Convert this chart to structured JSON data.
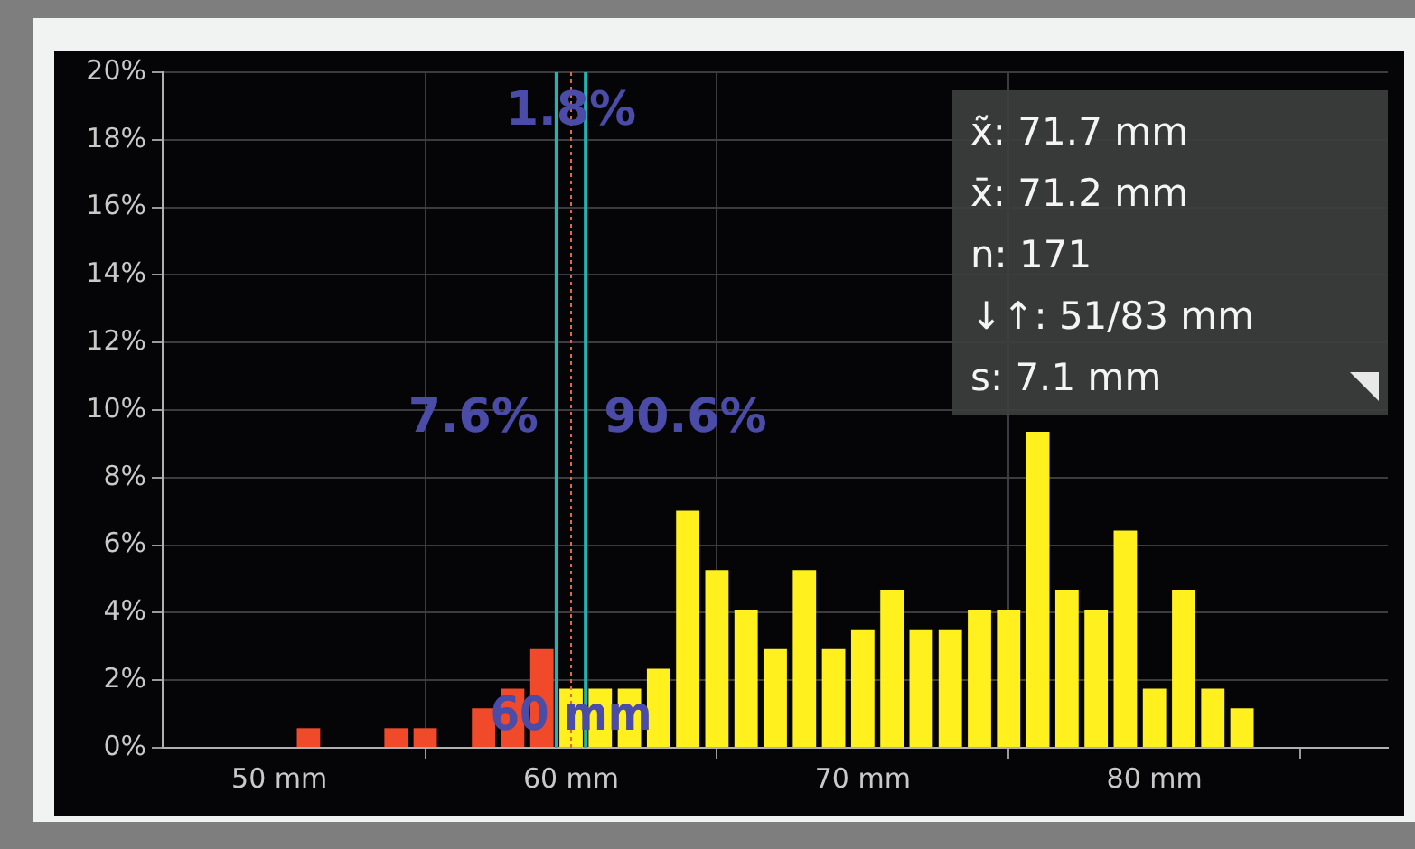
{
  "chart_data": {
    "type": "histogram",
    "bins": [
      50.5,
      51.5,
      52.5,
      53.5,
      54.5,
      55.5,
      56.5,
      57.5,
      58.5,
      59.5,
      60.5,
      61.5,
      62.5,
      63.5,
      64.5,
      65.5,
      66.5,
      67.5,
      68.5,
      69.5,
      70.5,
      71.5,
      72.5,
      73.5,
      74.5,
      75.5,
      76.5,
      77.5,
      78.5,
      79.5,
      80.5,
      81.5,
      82.5,
      83.5
    ],
    "values": [
      0.58,
      0,
      0,
      0.58,
      0.58,
      0,
      1.17,
      1.75,
      2.92,
      1.75,
      1.75,
      1.75,
      2.34,
      7.02,
      5.26,
      4.09,
      2.92,
      5.26,
      2.92,
      3.51,
      4.68,
      3.51,
      3.51,
      4.09,
      4.09,
      9.36,
      4.68,
      4.09,
      6.43,
      1.75,
      4.68,
      1.75,
      1.17
    ],
    "colors": [
      "#f04a2a",
      "#f04a2a",
      "#f04a2a",
      "#f04a2a",
      "#f04a2a",
      "#f04a2a",
      "#f04a2a",
      "#f04a2a",
      "#f04a2a",
      "#fff01e",
      "#fff01e",
      "#fff01e",
      "#fff01e",
      "#fff01e",
      "#fff01e",
      "#fff01e",
      "#fff01e",
      "#fff01e",
      "#fff01e",
      "#fff01e",
      "#fff01e",
      "#fff01e",
      "#fff01e",
      "#fff01e",
      "#fff01e",
      "#fff01e",
      "#fff01e",
      "#fff01e",
      "#fff01e",
      "#fff01e",
      "#fff01e",
      "#fff01e",
      "#fff01e"
    ],
    "xlim": [
      46,
      88
    ],
    "xticks": [
      {
        "value": 50,
        "label": "50 mm"
      },
      {
        "value": 60,
        "label": "60 mm"
      },
      {
        "value": 70,
        "label": "70 mm"
      },
      {
        "value": 80,
        "label": "80 mm"
      }
    ],
    "ylim": [
      0,
      20
    ],
    "yticks": [
      {
        "value": 0,
        "label": "0%"
      },
      {
        "value": 2,
        "label": "2%"
      },
      {
        "value": 4,
        "label": "4%"
      },
      {
        "value": 6,
        "label": "6%"
      },
      {
        "value": 8,
        "label": "8%"
      },
      {
        "value": 10,
        "label": "10%"
      },
      {
        "value": 12,
        "label": "12%"
      },
      {
        "value": 14,
        "label": "14%"
      },
      {
        "value": 16,
        "label": "16%"
      },
      {
        "value": 18,
        "label": "18%"
      },
      {
        "value": 20,
        "label": "20%"
      }
    ],
    "grid": true,
    "ref_lines": [
      {
        "axis": "x",
        "value": 59.5,
        "color": "#22b4b4"
      },
      {
        "axis": "x",
        "value": 60.5,
        "color": "#22b4b4"
      },
      {
        "axis": "x",
        "value": 60,
        "label": "60 mm",
        "color": "#e0683a",
        "line_style": "dotted"
      }
    ],
    "annotations": [
      {
        "text": "1.8%",
        "x": 60,
        "y": 18.8
      },
      "7.6%",
      "90.6%",
      "x̃: 71.7 mm",
      "x̄: 71.2 mm",
      "n: 171",
      "↓↑: 51/83 mm",
      "s: 7.1 mm"
    ]
  }
}
